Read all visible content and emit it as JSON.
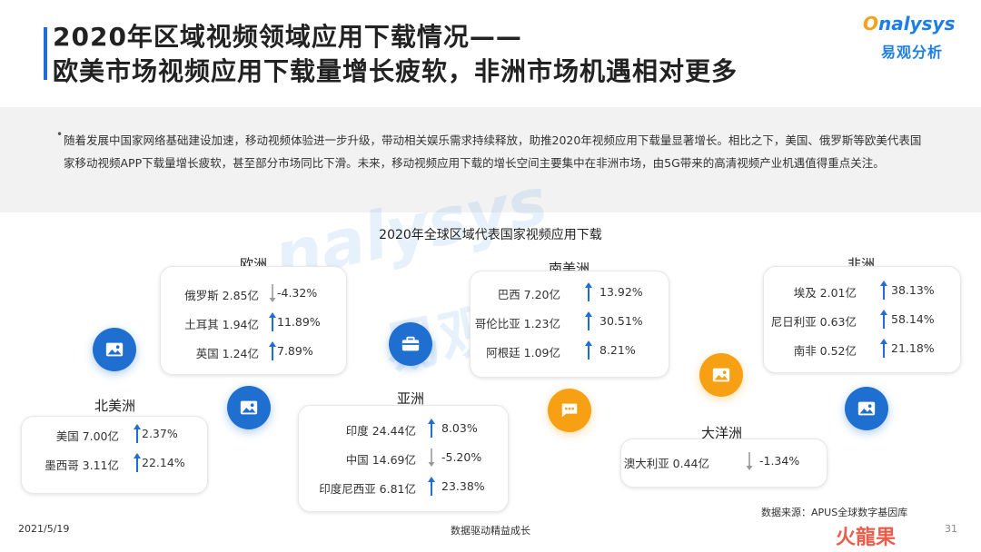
{
  "header": {
    "title_line1": "2020年区域视频领域应用下载情况——",
    "title_line2": "欧美市场视频应用下载量增长疲软，非洲市场机遇相对更多"
  },
  "logo": {
    "en": "nalysys",
    "en_o": "O",
    "cn": "易观分析"
  },
  "summary": {
    "bullet": "•",
    "text": "随着发展中国家网络基础建设加速，移动视频体验进一步升级，带动相关娱乐需求持续释放，助推2020年视频应用下载量显著增长。相比之下，美国、俄罗斯等欧美代表国家移动视频APP下载量增长疲软，甚至部分市场同比下滑。未来，移动视频应用下载的增长空间主要集中在非洲市场，由5G带来的高清视频产业机遇值得重点关注。"
  },
  "watermark": {
    "en": "nalysys",
    "cn": "易观分析"
  },
  "chart_data": {
    "type": "table",
    "title": "2020年全球区域代表国家视频应用下载",
    "regions": [
      {
        "name": "欧洲",
        "countries": [
          {
            "name": "俄罗斯",
            "downloads": "2.85亿",
            "growth": "-4.32%",
            "trend": "down"
          },
          {
            "name": "土耳其",
            "downloads": "1.94亿",
            "growth": "11.89%",
            "trend": "up"
          },
          {
            "name": "英国",
            "downloads": "1.24亿",
            "growth": "7.89%",
            "trend": "up"
          }
        ]
      },
      {
        "name": "北美洲",
        "countries": [
          {
            "name": "美国",
            "downloads": "7.00亿",
            "growth": "2.37%",
            "trend": "up"
          },
          {
            "name": "墨西哥",
            "downloads": "3.11亿",
            "growth": "22.14%",
            "trend": "up"
          }
        ]
      },
      {
        "name": "亚洲",
        "countries": [
          {
            "name": "印度",
            "downloads": "24.44亿",
            "growth": "8.03%",
            "trend": "up"
          },
          {
            "name": "中国",
            "downloads": "14.69亿",
            "growth": "-5.20%",
            "trend": "down"
          },
          {
            "name": "印度尼西亚",
            "downloads": "6.81亿",
            "growth": "23.38%",
            "trend": "up"
          }
        ]
      },
      {
        "name": "南美洲",
        "countries": [
          {
            "name": "巴西",
            "downloads": "7.20亿",
            "growth": "13.92%",
            "trend": "up"
          },
          {
            "name": "哥伦比亚",
            "downloads": "1.23亿",
            "growth": "30.51%",
            "trend": "up"
          },
          {
            "name": "阿根廷",
            "downloads": "1.09亿",
            "growth": "8.21%",
            "trend": "up"
          }
        ]
      },
      {
        "name": "大洋洲",
        "countries": [
          {
            "name": "澳大利亚",
            "downloads": "0.44亿",
            "growth": "-1.34%",
            "trend": "down"
          }
        ]
      },
      {
        "name": "非洲",
        "countries": [
          {
            "name": "埃及",
            "downloads": "2.01亿",
            "growth": "38.13%",
            "trend": "up"
          },
          {
            "name": "尼日利亚",
            "downloads": "0.63亿",
            "growth": "58.14%",
            "trend": "up"
          },
          {
            "name": "南非",
            "downloads": "0.52亿",
            "growth": "21.18%",
            "trend": "up"
          }
        ]
      }
    ]
  },
  "icons": {
    "europe": "image-icon",
    "north_america": "image-icon",
    "asia": "briefcase-icon",
    "south_america": "chat-icon",
    "oceania": "image-icon",
    "africa": "image-icon"
  },
  "colors": {
    "blue": "#1e6fd0",
    "orange": "#f7a013",
    "up_arrow": "#1e6fd0",
    "down_arrow": "#999999"
  },
  "footer": {
    "date": "2021/5/19",
    "center": "数据驱动精益成长",
    "source": "数据来源：APUS全球数字基因库",
    "page": "31",
    "badge": "火龍果"
  }
}
